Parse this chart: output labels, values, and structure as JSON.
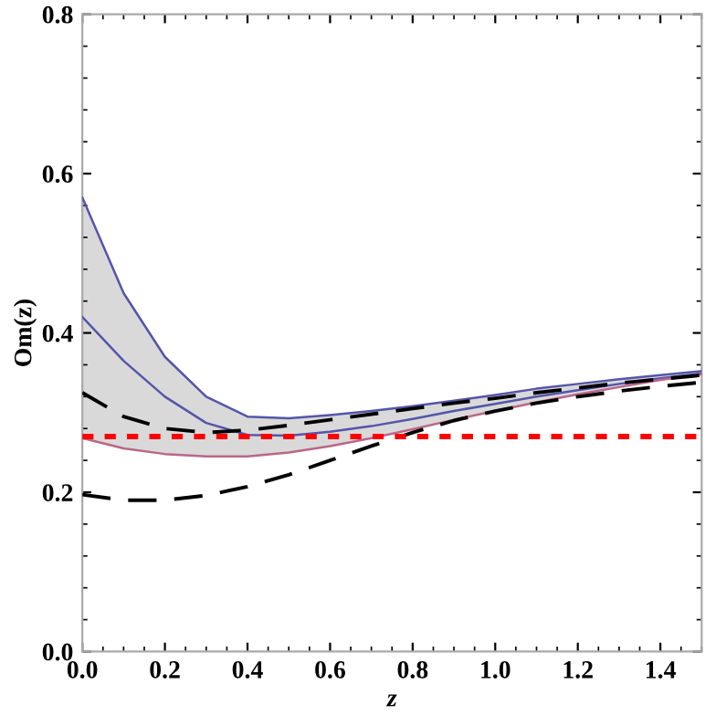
{
  "chart_data": {
    "type": "line",
    "xlabel": "z",
    "ylabel": "Om(z)",
    "x": [
      0,
      0.1,
      0.2,
      0.3,
      0.4,
      0.5,
      0.6,
      0.7,
      0.8,
      0.9,
      1.0,
      1.1,
      1.2,
      1.3,
      1.4,
      1.5
    ],
    "series": [
      {
        "color": "#5555aa",
        "values": [
          0.57,
          0.45,
          0.37,
          0.32,
          0.295,
          0.293,
          0.297,
          0.302,
          0.308,
          0.315,
          0.322,
          0.33,
          0.336,
          0.342,
          0.347,
          0.352
        ]
      },
      {
        "color": "#5555aa",
        "values": [
          0.42,
          0.365,
          0.32,
          0.287,
          0.272,
          0.271,
          0.276,
          0.283,
          0.292,
          0.302,
          0.311,
          0.32,
          0.328,
          0.336,
          0.343,
          0.349
        ],
        "lower": [
          0.268,
          0.255,
          0.248,
          0.245,
          0.245,
          0.25,
          0.258,
          0.268,
          0.279,
          0.291,
          0.302,
          0.313,
          0.323,
          0.332,
          0.341,
          0.348
        ],
        "upper": [
          0.57,
          0.45,
          0.37,
          0.32,
          0.295,
          0.293,
          0.297,
          0.302,
          0.308,
          0.315,
          0.322,
          0.33,
          0.336,
          0.342,
          0.347,
          0.352
        ]
      },
      {
        "color": "#bb6688",
        "values": [
          0.268,
          0.255,
          0.248,
          0.245,
          0.245,
          0.25,
          0.258,
          0.268,
          0.279,
          0.291,
          0.302,
          0.313,
          0.323,
          0.332,
          0.341,
          0.348
        ]
      },
      {
        "color": "#000000",
        "line_style": "dashed",
        "values": [
          0.325,
          0.295,
          0.28,
          0.275,
          0.278,
          0.284,
          0.291,
          0.298,
          0.305,
          0.312,
          0.318,
          0.325,
          0.331,
          0.337,
          0.342,
          0.347
        ]
      },
      {
        "color": "#000000",
        "line_style": "dashed",
        "values": [
          0.197,
          0.19,
          0.19,
          0.196,
          0.207,
          0.222,
          0.24,
          0.258,
          0.275,
          0.29,
          0.302,
          0.312,
          0.32,
          0.327,
          0.333,
          0.338
        ]
      }
    ],
    "ref_lines": [
      {
        "axis": "y",
        "value": 0.27,
        "color": "#ff0000",
        "line_style": "dotted"
      }
    ],
    "xlim": [
      0,
      1.5
    ],
    "ylim": [
      0,
      0.8
    ],
    "xticks": [
      {
        "value": 0,
        "label": "0.0"
      },
      0.2,
      0.4,
      0.6,
      0.8,
      {
        "value": 1,
        "label": "1.0"
      },
      1.2,
      1.4
    ],
    "yticks": [
      {
        "value": 0,
        "label": "0.0"
      },
      0.2,
      0.4,
      0.6,
      0.8
    ],
    "grid": false,
    "legend": false,
    "marker": "none"
  }
}
